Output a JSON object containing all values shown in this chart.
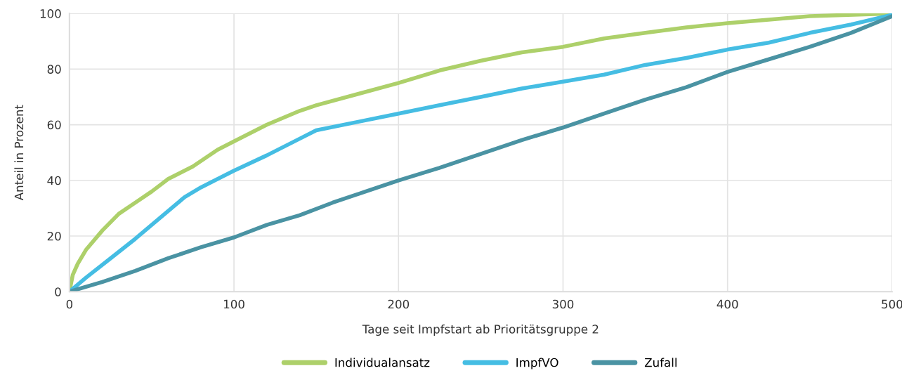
{
  "chart_data": {
    "type": "line",
    "xlabel": "Tage seit Impfstart ab Prioritätsgruppe 2",
    "ylabel": "Anteil in Prozent",
    "xlim": [
      0,
      500
    ],
    "ylim": [
      0,
      100
    ],
    "xticks": [
      0,
      100,
      200,
      300,
      400,
      500
    ],
    "yticks": [
      0,
      20,
      40,
      60,
      80,
      100
    ],
    "grid": true,
    "legend": "bottom",
    "marker": "none",
    "line_style": "solid",
    "series": [
      {
        "name": "Individualansatz",
        "color": "#add06a",
        "x": [
          0,
          2,
          5,
          10,
          20,
          30,
          40,
          50,
          60,
          75,
          90,
          100,
          120,
          140,
          150,
          175,
          200,
          225,
          250,
          275,
          300,
          325,
          350,
          375,
          400,
          450,
          500
        ],
        "values": [
          0,
          6,
          10,
          15,
          22,
          28,
          32,
          36,
          40.5,
          45,
          51,
          54,
          60,
          65,
          67,
          71,
          75,
          79.5,
          83,
          86,
          88,
          91,
          93,
          95,
          96.5,
          99,
          100
        ]
      },
      {
        "name": "ImpfVO",
        "color": "#45bde3",
        "x": [
          0,
          10,
          25,
          40,
          50,
          60,
          70,
          80,
          100,
          120,
          140,
          150,
          175,
          200,
          225,
          250,
          275,
          300,
          325,
          350,
          375,
          400,
          425,
          450,
          475,
          500
        ],
        "values": [
          0,
          5,
          12,
          19,
          24,
          29,
          34,
          37.5,
          43.5,
          49,
          55,
          58,
          61,
          64,
          67,
          70,
          73,
          75.5,
          78,
          81.5,
          84,
          87,
          89.5,
          93,
          96,
          99.5
        ]
      },
      {
        "name": "Zufall",
        "color": "#4a93a3",
        "x": [
          0,
          20,
          40,
          60,
          80,
          100,
          120,
          140,
          160,
          180,
          200,
          225,
          250,
          275,
          300,
          325,
          350,
          375,
          400,
          425,
          450,
          475,
          500
        ],
        "values": [
          0,
          3.5,
          7.5,
          12,
          16,
          19.5,
          24,
          27.5,
          32,
          36,
          40,
          44.5,
          49.5,
          54.5,
          59,
          64,
          69,
          73.5,
          79,
          83.5,
          88,
          93,
          99
        ]
      }
    ]
  }
}
